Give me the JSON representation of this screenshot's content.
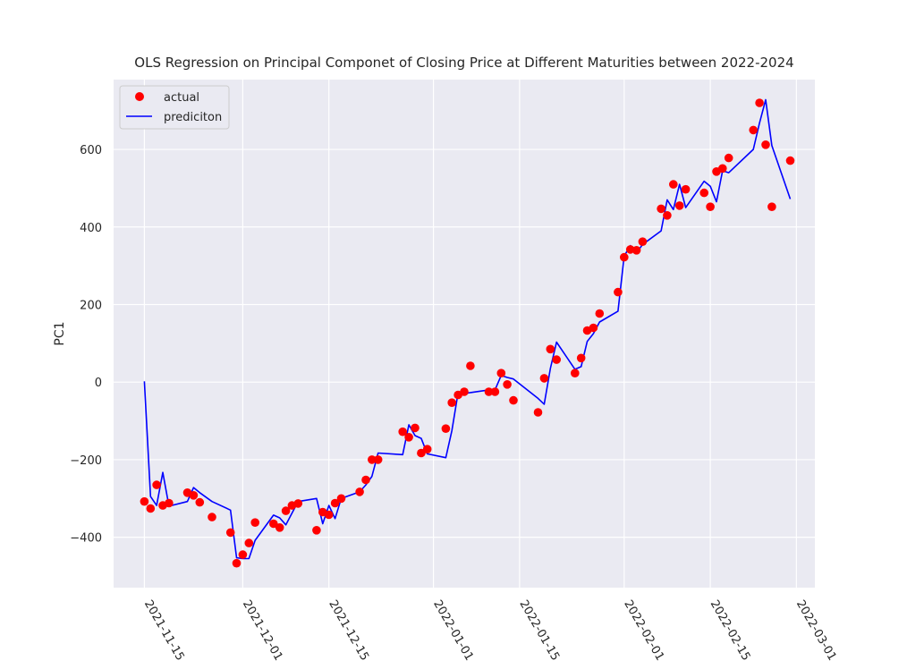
{
  "chart_data": {
    "type": "scatter+line",
    "title": "OLS Regression on Principal Componet of Closing Price at Different Maturities between 2022-2024",
    "xlabel": "",
    "ylabel": "PC1",
    "ylim": [
      -530,
      780
    ],
    "xlim": [
      "2021-11-10",
      "2022-03-04"
    ],
    "yticks": [
      -400,
      -200,
      0,
      200,
      400,
      600
    ],
    "xticks": [
      "2021-11-15",
      "2021-12-01",
      "2021-12-15",
      "2022-01-01",
      "2022-01-15",
      "2022-02-01",
      "2022-02-15",
      "2022-03-01"
    ],
    "grid": true,
    "legend_position": "upper left",
    "colors": {
      "background": "#eaeaf2",
      "grid": "#ffffff",
      "actual": "#ff0000",
      "prediction": "#0000ff"
    },
    "series": [
      {
        "name": "actual",
        "kind": "scatter",
        "points": [
          [
            "2021-11-15",
            -308
          ],
          [
            "2021-11-16",
            -326
          ],
          [
            "2021-11-17",
            -265
          ],
          [
            "2021-11-18",
            -318
          ],
          [
            "2021-11-19",
            -312
          ],
          [
            "2021-11-22",
            -285
          ],
          [
            "2021-11-23",
            -292
          ],
          [
            "2021-11-24",
            -310
          ],
          [
            "2021-11-26",
            -348
          ],
          [
            "2021-11-29",
            -388
          ],
          [
            "2021-11-30",
            -467
          ],
          [
            "2021-12-01",
            -445
          ],
          [
            "2021-12-02",
            -415
          ],
          [
            "2021-12-03",
            -362
          ],
          [
            "2021-12-06",
            -365
          ],
          [
            "2021-12-07",
            -375
          ],
          [
            "2021-12-08",
            -332
          ],
          [
            "2021-12-09",
            -318
          ],
          [
            "2021-12-10",
            -313
          ],
          [
            "2021-12-13",
            -382
          ],
          [
            "2021-12-14",
            -335
          ],
          [
            "2021-12-15",
            -342
          ],
          [
            "2021-12-16",
            -312
          ],
          [
            "2021-12-17",
            -300
          ],
          [
            "2021-12-20",
            -283
          ],
          [
            "2021-12-21",
            -252
          ],
          [
            "2021-12-22",
            -200
          ],
          [
            "2021-12-23",
            -200
          ],
          [
            "2021-12-27",
            -128
          ],
          [
            "2021-12-28",
            -142
          ],
          [
            "2021-12-29",
            -118
          ],
          [
            "2021-12-30",
            -183
          ],
          [
            "2021-12-31",
            -173
          ],
          [
            "2022-01-03",
            -120
          ],
          [
            "2022-01-04",
            -53
          ],
          [
            "2022-01-05",
            -33
          ],
          [
            "2022-01-06",
            -25
          ],
          [
            "2022-01-07",
            42
          ],
          [
            "2022-01-10",
            -25
          ],
          [
            "2022-01-11",
            -25
          ],
          [
            "2022-01-12",
            23
          ],
          [
            "2022-01-13",
            -6
          ],
          [
            "2022-01-14",
            -47
          ],
          [
            "2022-01-18",
            -78
          ],
          [
            "2022-01-19",
            10
          ],
          [
            "2022-01-20",
            85
          ],
          [
            "2022-01-21",
            58
          ],
          [
            "2022-01-24",
            23
          ],
          [
            "2022-01-25",
            62
          ],
          [
            "2022-01-26",
            133
          ],
          [
            "2022-01-27",
            140
          ],
          [
            "2022-01-28",
            177
          ],
          [
            "2022-01-31",
            232
          ],
          [
            "2022-02-01",
            322
          ],
          [
            "2022-02-02",
            342
          ],
          [
            "2022-02-03",
            340
          ],
          [
            "2022-02-04",
            362
          ],
          [
            "2022-02-07",
            447
          ],
          [
            "2022-02-08",
            430
          ],
          [
            "2022-02-09",
            510
          ],
          [
            "2022-02-10",
            455
          ],
          [
            "2022-02-11",
            497
          ],
          [
            "2022-02-14",
            488
          ],
          [
            "2022-02-15",
            452
          ],
          [
            "2022-02-16",
            543
          ],
          [
            "2022-02-17",
            551
          ],
          [
            "2022-02-18",
            578
          ],
          [
            "2022-02-22",
            650
          ],
          [
            "2022-02-23",
            720
          ],
          [
            "2022-02-24",
            612
          ],
          [
            "2022-02-25",
            452
          ],
          [
            "2022-02-28",
            571
          ]
        ]
      },
      {
        "name": "prediciton",
        "kind": "line",
        "points": [
          [
            "2021-11-15",
            2
          ],
          [
            "2021-11-16",
            -295
          ],
          [
            "2021-11-17",
            -318
          ],
          [
            "2021-11-18",
            -233
          ],
          [
            "2021-11-19",
            -320
          ],
          [
            "2021-11-22",
            -308
          ],
          [
            "2021-11-23",
            -272
          ],
          [
            "2021-11-24",
            -285
          ],
          [
            "2021-11-26",
            -308
          ],
          [
            "2021-11-29",
            -330
          ],
          [
            "2021-11-30",
            -453
          ],
          [
            "2021-12-01",
            -455
          ],
          [
            "2021-12-02",
            -455
          ],
          [
            "2021-12-03",
            -408
          ],
          [
            "2021-12-06",
            -343
          ],
          [
            "2021-12-07",
            -350
          ],
          [
            "2021-12-08",
            -368
          ],
          [
            "2021-12-09",
            -338
          ],
          [
            "2021-12-10",
            -308
          ],
          [
            "2021-12-13",
            -300
          ],
          [
            "2021-12-14",
            -365
          ],
          [
            "2021-12-15",
            -318
          ],
          [
            "2021-12-16",
            -352
          ],
          [
            "2021-12-17",
            -300
          ],
          [
            "2021-12-20",
            -283
          ],
          [
            "2021-12-21",
            -265
          ],
          [
            "2021-12-22",
            -243
          ],
          [
            "2021-12-23",
            -183
          ],
          [
            "2021-12-27",
            -187
          ],
          [
            "2021-12-28",
            -110
          ],
          [
            "2021-12-29",
            -138
          ],
          [
            "2021-12-30",
            -145
          ],
          [
            "2021-12-31",
            -185
          ],
          [
            "2022-01-03",
            -195
          ],
          [
            "2022-01-04",
            -125
          ],
          [
            "2022-01-05",
            -28
          ],
          [
            "2022-01-06",
            -30
          ],
          [
            "2022-01-07",
            -27
          ],
          [
            "2022-01-10",
            -20
          ],
          [
            "2022-01-11",
            -20
          ],
          [
            "2022-01-12",
            17
          ],
          [
            "2022-01-13",
            12
          ],
          [
            "2022-01-14",
            8
          ],
          [
            "2022-01-18",
            -42
          ],
          [
            "2022-01-19",
            -57
          ],
          [
            "2022-01-20",
            35
          ],
          [
            "2022-01-21",
            103
          ],
          [
            "2022-01-24",
            33
          ],
          [
            "2022-01-25",
            40
          ],
          [
            "2022-01-26",
            105
          ],
          [
            "2022-01-27",
            125
          ],
          [
            "2022-01-28",
            155
          ],
          [
            "2022-01-31",
            183
          ],
          [
            "2022-02-01",
            325
          ],
          [
            "2022-02-02",
            352
          ],
          [
            "2022-02-03",
            333
          ],
          [
            "2022-02-04",
            355
          ],
          [
            "2022-02-07",
            390
          ],
          [
            "2022-02-08",
            470
          ],
          [
            "2022-02-09",
            445
          ],
          [
            "2022-02-10",
            510
          ],
          [
            "2022-02-11",
            450
          ],
          [
            "2022-02-14",
            518
          ],
          [
            "2022-02-15",
            505
          ],
          [
            "2022-02-16",
            465
          ],
          [
            "2022-02-17",
            545
          ],
          [
            "2022-02-18",
            540
          ],
          [
            "2022-02-22",
            600
          ],
          [
            "2022-02-23",
            668
          ],
          [
            "2022-02-24",
            728
          ],
          [
            "2022-02-25",
            610
          ],
          [
            "2022-02-28",
            472
          ]
        ]
      }
    ]
  }
}
